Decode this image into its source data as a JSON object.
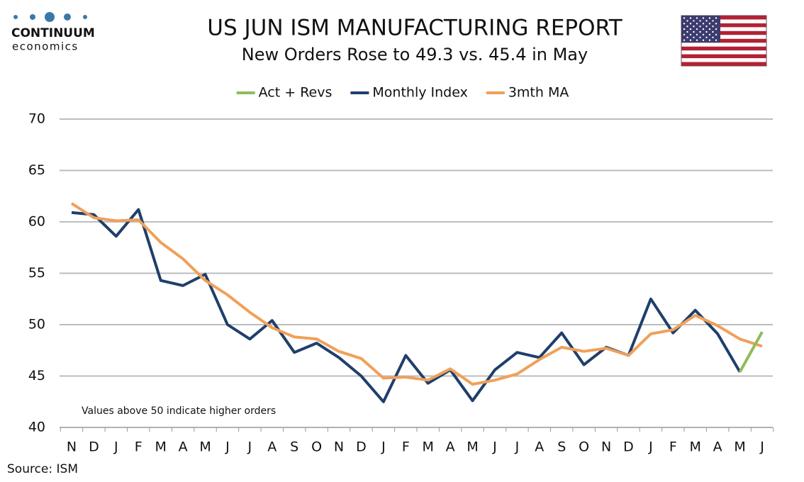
{
  "logo": {
    "name": "CONTINUUM",
    "tagline": "economics"
  },
  "chart_data": {
    "type": "line",
    "title": "US JUN ISM MANUFACTURING REPORT",
    "subtitle": "New Orders Rose to 49.3 vs. 45.4 in May",
    "annotation": "Values above 50 indicate higher orders",
    "source": "Source: ISM",
    "categories": [
      "N",
      "D",
      "J",
      "F",
      "M",
      "A",
      "M",
      "J",
      "J",
      "A",
      "S",
      "O",
      "N",
      "D",
      "J",
      "F",
      "M",
      "A",
      "M",
      "J",
      "J",
      "A",
      "S",
      "O",
      "N",
      "D",
      "J",
      "F",
      "M",
      "A",
      "M",
      "J"
    ],
    "series": [
      {
        "name": "Act + Revs",
        "color": "#8fbc5a",
        "values": [
          null,
          null,
          null,
          null,
          null,
          null,
          null,
          null,
          null,
          null,
          null,
          null,
          null,
          null,
          null,
          null,
          null,
          null,
          null,
          null,
          null,
          null,
          null,
          null,
          null,
          null,
          null,
          null,
          null,
          null,
          45.4,
          49.3
        ]
      },
      {
        "name": "Monthly Index",
        "color": "#1f3f6b",
        "values": [
          60.9,
          60.7,
          58.6,
          61.2,
          54.3,
          53.8,
          54.9,
          50.0,
          48.6,
          50.4,
          47.3,
          48.2,
          46.8,
          45.0,
          42.5,
          47.0,
          44.3,
          45.6,
          42.6,
          45.6,
          47.3,
          46.8,
          49.2,
          46.1,
          47.8,
          47.0,
          52.5,
          49.2,
          51.4,
          49.1,
          45.4,
          null
        ]
      },
      {
        "name": "3mth MA",
        "color": "#f0a05a",
        "values": [
          61.8,
          60.4,
          60.1,
          60.2,
          58.0,
          56.4,
          54.3,
          52.9,
          51.2,
          49.7,
          48.8,
          48.6,
          47.4,
          46.7,
          44.8,
          44.9,
          44.6,
          45.7,
          44.2,
          44.6,
          45.2,
          46.6,
          47.8,
          47.4,
          47.7,
          47.0,
          49.1,
          49.5,
          50.9,
          49.9,
          48.6,
          47.9
        ]
      }
    ],
    "ylim": [
      40,
      70
    ],
    "yticks": [
      40,
      45,
      50,
      55,
      60,
      65,
      70
    ],
    "grid": true,
    "legend": "top"
  }
}
